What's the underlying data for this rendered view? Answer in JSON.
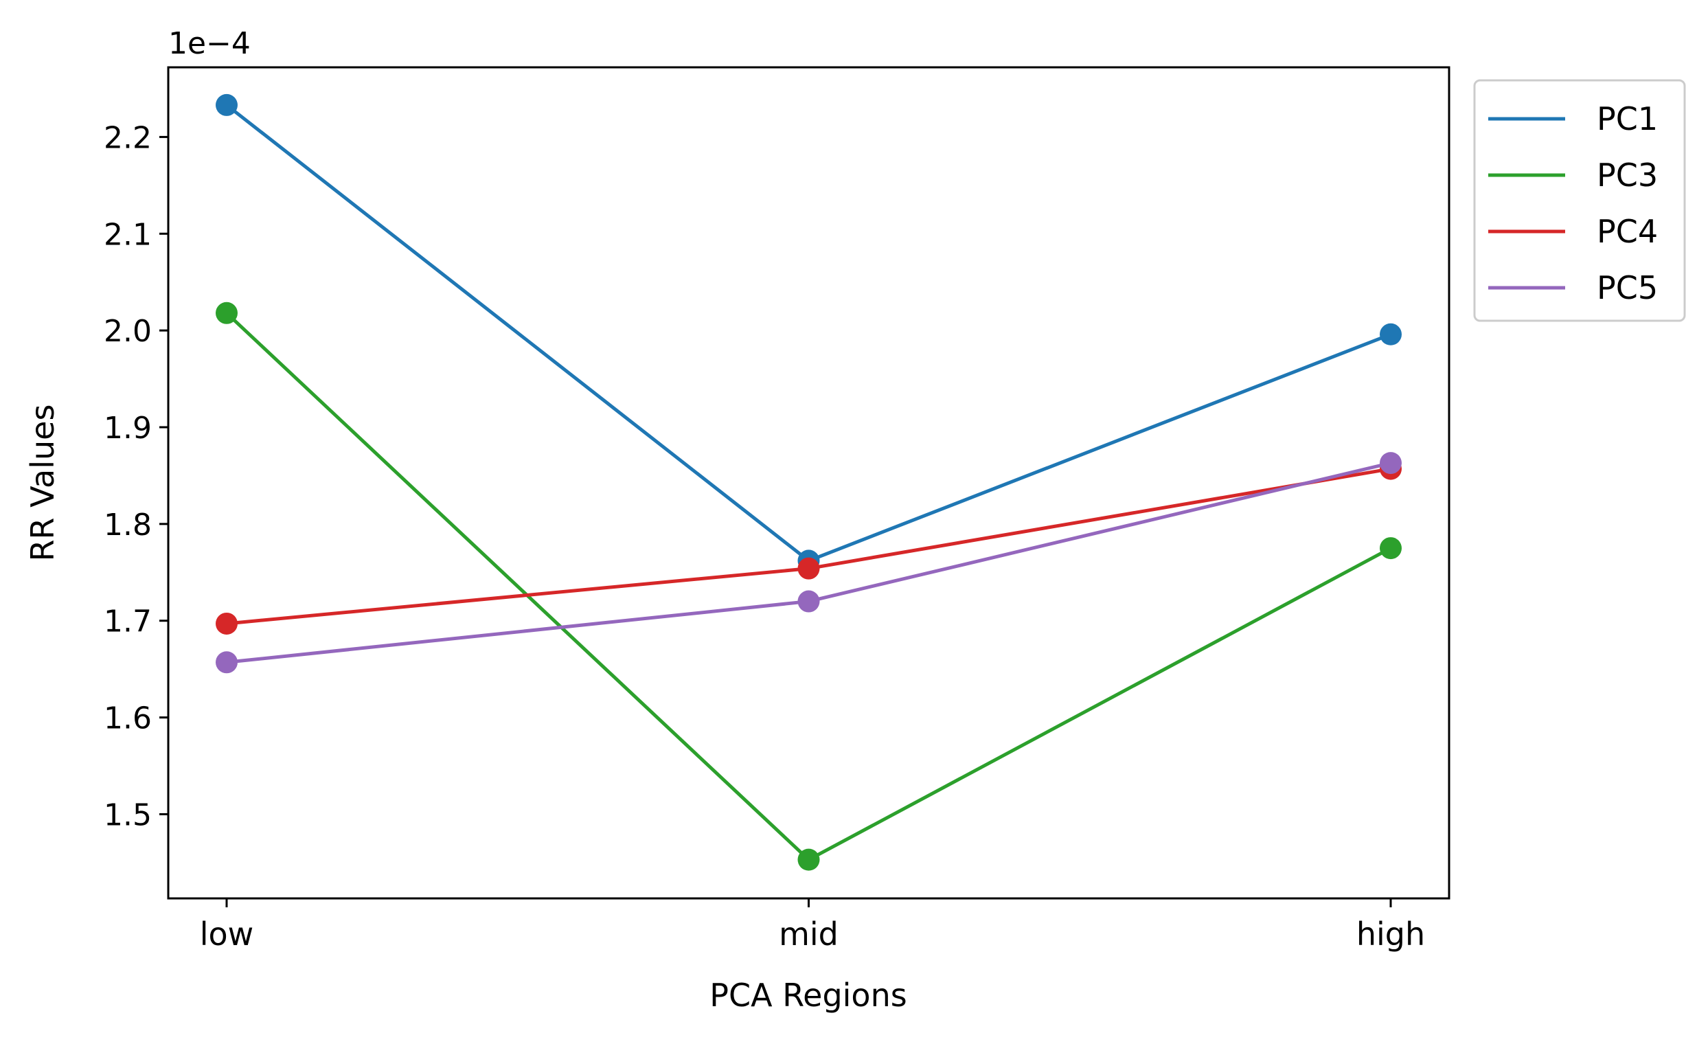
{
  "chart_data": {
    "type": "line",
    "title": "",
    "xlabel": "PCA Regions",
    "ylabel": "RR Values",
    "y_offset_label": "1e−4",
    "y_scale": 0.0001,
    "categories": [
      "low",
      "mid",
      "high"
    ],
    "ylim": [
      1.413,
      2.272
    ],
    "yticks": [
      1.5,
      1.6,
      1.7,
      1.8,
      1.9,
      2.0,
      2.1,
      2.2
    ],
    "ytick_labels": [
      "1.5",
      "1.6",
      "1.7",
      "1.8",
      "1.9",
      "2.0",
      "2.1",
      "2.2"
    ],
    "grid": false,
    "legend_position": "outside-top-right",
    "series": [
      {
        "name": "PC1",
        "color": "#1f77b4",
        "values": [
          2.233,
          1.762,
          1.996
        ]
      },
      {
        "name": "PC3",
        "color": "#2ca02c",
        "values": [
          2.018,
          1.453,
          1.775
        ]
      },
      {
        "name": "PC4",
        "color": "#d62728",
        "values": [
          1.697,
          1.754,
          1.857
        ]
      },
      {
        "name": "PC5",
        "color": "#9467bd",
        "values": [
          1.657,
          1.72,
          1.863
        ]
      }
    ]
  }
}
